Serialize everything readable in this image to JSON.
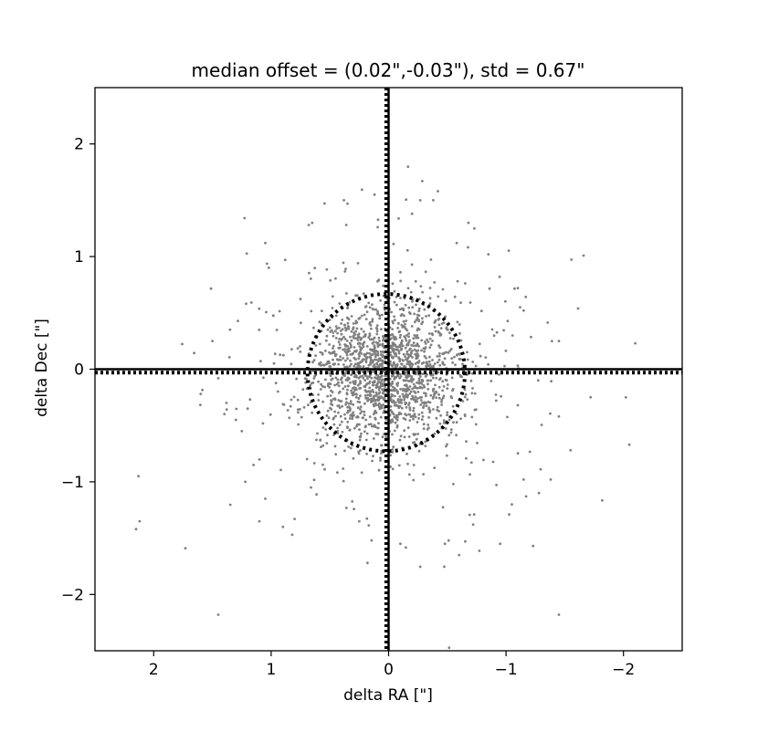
{
  "chart_data": {
    "type": "scatter",
    "title": "median offset = (0.02\",-0.03\"), std =  0.67\"",
    "xlabel": "delta RA [\"]",
    "ylabel": "delta Dec [\"]",
    "xlim": [
      2.5,
      -2.5
    ],
    "ylim": [
      -2.5,
      2.5
    ],
    "x_inverted": true,
    "xticks": [
      2,
      1,
      0,
      -1,
      -2
    ],
    "xtick_labels": [
      "2",
      "1",
      "0",
      "−1",
      "−2"
    ],
    "yticks": [
      -2,
      -1,
      0,
      1,
      2
    ],
    "ytick_labels": [
      "−2",
      "−1",
      "0",
      "1",
      "2"
    ],
    "grid": false,
    "point_color": "#808080",
    "line_color": "#000000",
    "zero_lines": {
      "x": 0,
      "y": 0
    },
    "median_lines": {
      "x": 0.02,
      "y": -0.03
    },
    "std_circle": {
      "center": [
        0.02,
        -0.03
      ],
      "radius": 0.67
    },
    "scatter": {
      "n_points": 1800,
      "core_sigma": 0.3,
      "halo_sigma": 0.65,
      "halo_fraction": 0.2
    },
    "outliers": [
      [
        2.13,
        -0.95
      ],
      [
        2.15,
        -1.42
      ],
      [
        2.12,
        -1.35
      ],
      [
        1.73,
        -1.59
      ],
      [
        1.45,
        -2.18
      ],
      [
        1.5,
        0.25
      ],
      [
        1.45,
        -0.08
      ],
      [
        1.6,
        -0.22
      ],
      [
        1.38,
        -0.3
      ],
      [
        1.3,
        -0.45
      ],
      [
        1.35,
        0.35
      ],
      [
        1.2,
        -0.35
      ],
      [
        1.25,
        -0.55
      ],
      [
        1.22,
        -1.0
      ],
      [
        1.1,
        -1.35
      ],
      [
        1.15,
        -0.85
      ],
      [
        1.05,
        -1.15
      ],
      [
        1.02,
        0.9
      ],
      [
        1.05,
        1.12
      ],
      [
        0.88,
        0.97
      ],
      [
        0.9,
        -1.4
      ],
      [
        0.8,
        -1.33
      ],
      [
        0.82,
        -1.47
      ],
      [
        -1.45,
        -2.18
      ],
      [
        -1.23,
        -1.57
      ],
      [
        -2.1,
        0.23
      ],
      [
        -2.02,
        -0.25
      ],
      [
        -2.05,
        -0.67
      ],
      [
        -1.72,
        -0.25
      ],
      [
        -1.55,
        -0.72
      ],
      [
        -1.45,
        -0.42
      ],
      [
        -1.45,
        0.25
      ],
      [
        -1.38,
        -0.98
      ],
      [
        -1.28,
        -1.1
      ],
      [
        -1.15,
        -0.98
      ],
      [
        -1.1,
        -0.32
      ],
      [
        -1.12,
        0.55
      ],
      [
        -1.15,
        0.52
      ],
      [
        -1.1,
        0.72
      ],
      [
        -1.05,
        -1.2
      ],
      [
        -0.95,
        -1.55
      ],
      [
        -0.48,
        -1.55
      ],
      [
        -0.72,
        -1.38
      ],
      [
        -0.68,
        1.3
      ],
      [
        -0.73,
        1.25
      ],
      [
        -0.42,
        1.58
      ],
      [
        -0.38,
        1.5
      ],
      [
        -0.27,
        1.5
      ],
      [
        0.35,
        1.47
      ],
      [
        0.12,
        1.55
      ],
      [
        0.38,
        1.5
      ],
      [
        0.36,
        1.28
      ],
      [
        0.68,
        1.28
      ],
      [
        0.65,
        1.3
      ],
      [
        -0.58,
        1.12
      ],
      [
        -0.85,
        1.02
      ],
      [
        0.0,
        1.48
      ],
      [
        -0.2,
        1.38
      ],
      [
        0.18,
        -1.72
      ],
      [
        -0.1,
        -1.55
      ],
      [
        -0.6,
        -1.65
      ],
      [
        0.25,
        -1.35
      ]
    ]
  }
}
